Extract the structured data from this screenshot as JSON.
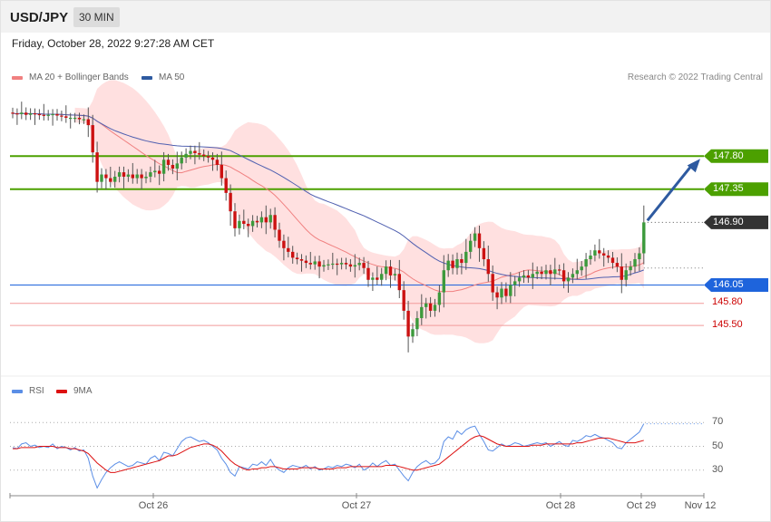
{
  "header": {
    "symbol": "USD/JPY",
    "timeframe": "30 MIN"
  },
  "datetime": "Friday, October 28, 2022 9:27:28 AM CET",
  "legend": [
    {
      "label": "MA 20 + Bollinger Bands",
      "color": "#f08080"
    },
    {
      "label": "MA 50",
      "color": "#2e5aa0"
    }
  ],
  "copyright": "Research © 2022 Trading Central",
  "levels": {
    "resistance": [
      {
        "label": "147.80",
        "value": 147.8,
        "color": "#4ca000"
      },
      {
        "label": "147.35",
        "value": 147.35,
        "color": "#4ca000"
      }
    ],
    "current": {
      "label": "146.90",
      "value": 146.9,
      "color": "#333333"
    },
    "pivot": {
      "label": "146.05",
      "value": 146.05,
      "color": "#1e64dc"
    },
    "support": [
      {
        "label": "145.80",
        "value": 145.8,
        "color": "#cc0000"
      },
      {
        "label": "145.50",
        "value": 145.5,
        "color": "#cc0000"
      }
    ]
  },
  "rsi_legend": [
    {
      "label": "RSI",
      "color": "#5b8ee6"
    },
    {
      "label": "9MA",
      "color": "#dd1111"
    }
  ],
  "rsi_levels": [
    "70",
    "50",
    "30"
  ],
  "x_labels": [
    "Oct 26",
    "Oct 27",
    "Oct 28",
    "Oct 29",
    "Nov 12"
  ],
  "colors": {
    "up": "#3c9a3c",
    "down": "#cc1111",
    "band": "#ffdada",
    "ma20": "#f08080",
    "ma50": "#5060b0",
    "arrow": "#2e5aa0"
  },
  "chart_data": {
    "type": "candlestick",
    "ylim": [
      144.85,
      148.75
    ],
    "closes": [
      148.38,
      148.37,
      148.39,
      148.36,
      148.38,
      148.37,
      148.36,
      148.35,
      148.36,
      148.37,
      148.35,
      148.34,
      148.32,
      148.32,
      148.32,
      148.3,
      148.3,
      148.22,
      147.85,
      147.45,
      147.55,
      147.5,
      147.45,
      147.52,
      147.58,
      147.52,
      147.55,
      147.5,
      147.55,
      147.5,
      147.52,
      147.58,
      147.6,
      147.56,
      147.75,
      147.68,
      147.63,
      147.7,
      147.78,
      147.83,
      147.87,
      147.84,
      147.82,
      147.8,
      147.78,
      147.75,
      147.68,
      147.5,
      147.3,
      147.05,
      146.82,
      146.92,
      146.88,
      146.85,
      146.92,
      146.9,
      146.97,
      146.9,
      147.0,
      146.8,
      146.65,
      146.55,
      146.5,
      146.42,
      146.4,
      146.38,
      146.35,
      146.33,
      146.37,
      146.3,
      146.32,
      146.33,
      146.34,
      146.33,
      146.35,
      146.33,
      146.3,
      146.32,
      146.35,
      146.28,
      146.12,
      146.15,
      146.12,
      146.2,
      146.3,
      146.18,
      146.2,
      145.98,
      145.7,
      145.35,
      145.45,
      145.6,
      145.75,
      145.8,
      145.7,
      145.78,
      145.95,
      146.25,
      146.38,
      146.28,
      146.4,
      146.35,
      146.5,
      146.65,
      146.75,
      146.55,
      146.4,
      146.2,
      145.95,
      145.88,
      146.0,
      145.9,
      146.05,
      146.1,
      146.15,
      146.18,
      146.15,
      146.2,
      146.23,
      146.2,
      146.25,
      146.2,
      146.26,
      146.25,
      146.1,
      146.15,
      146.2,
      146.25,
      146.3,
      146.4,
      146.45,
      146.52,
      146.48,
      146.45,
      146.42,
      146.35,
      146.3,
      146.12,
      146.25,
      146.3,
      146.4,
      146.48,
      146.9
    ]
  },
  "rsi_data": {
    "ylim": [
      10,
      90
    ],
    "rsi": [
      49,
      48,
      52,
      53,
      50,
      51,
      49,
      50,
      49,
      52,
      48,
      50,
      49,
      47,
      49,
      46,
      47,
      40,
      25,
      15,
      22,
      28,
      32,
      35,
      37,
      35,
      33,
      34,
      37,
      36,
      35,
      40,
      42,
      38,
      45,
      44,
      42,
      48,
      54,
      57,
      58,
      56,
      54,
      55,
      53,
      50,
      47,
      40,
      35,
      28,
      25,
      33,
      32,
      31,
      35,
      34,
      37,
      34,
      39,
      33,
      30,
      28,
      32,
      34,
      33,
      32,
      34,
      31,
      33,
      30,
      31,
      33,
      32,
      34,
      33,
      35,
      34,
      32,
      35,
      30,
      32,
      36,
      33,
      36,
      38,
      34,
      35,
      30,
      25,
      21,
      28,
      33,
      36,
      38,
      35,
      36,
      40,
      54,
      58,
      56,
      63,
      60,
      64,
      66,
      67,
      60,
      54,
      47,
      46,
      49,
      52,
      50,
      51,
      53,
      52,
      50,
      51,
      52,
      53,
      52,
      53,
      50,
      52,
      54,
      51,
      50,
      55,
      54,
      56,
      59,
      58,
      60,
      58,
      57,
      55,
      53,
      49,
      48,
      53,
      56,
      59,
      62,
      69
    ],
    "ma9": [
      48,
      48,
      49,
      49,
      49,
      49,
      50,
      50,
      50,
      50,
      49,
      49,
      49,
      48,
      48,
      47,
      46,
      44,
      40,
      36,
      33,
      30,
      28,
      28,
      29,
      30,
      31,
      32,
      33,
      34,
      35,
      36,
      37,
      38,
      40,
      42,
      42,
      43,
      45,
      47,
      49,
      50,
      51,
      52,
      52,
      51,
      49,
      46,
      42,
      38,
      35,
      33,
      31,
      30,
      31,
      31,
      32,
      32,
      33,
      33,
      32,
      31,
      31,
      31,
      31,
      32,
      32,
      32,
      32,
      31,
      31,
      31,
      31,
      32,
      32,
      32,
      33,
      33,
      33,
      33,
      33,
      33,
      33,
      33,
      34,
      34,
      34,
      33,
      32,
      31,
      30,
      30,
      31,
      32,
      33,
      34,
      35,
      38,
      41,
      44,
      47,
      50,
      53,
      56,
      58,
      59,
      58,
      56,
      54,
      52,
      51,
      50,
      50,
      50,
      50,
      50,
      50,
      51,
      51,
      51,
      52,
      52,
      52,
      52,
      52,
      52,
      52,
      53,
      53,
      54,
      55,
      56,
      57,
      57,
      57,
      56,
      55,
      54,
      53,
      53,
      53,
      54,
      55
    ]
  }
}
